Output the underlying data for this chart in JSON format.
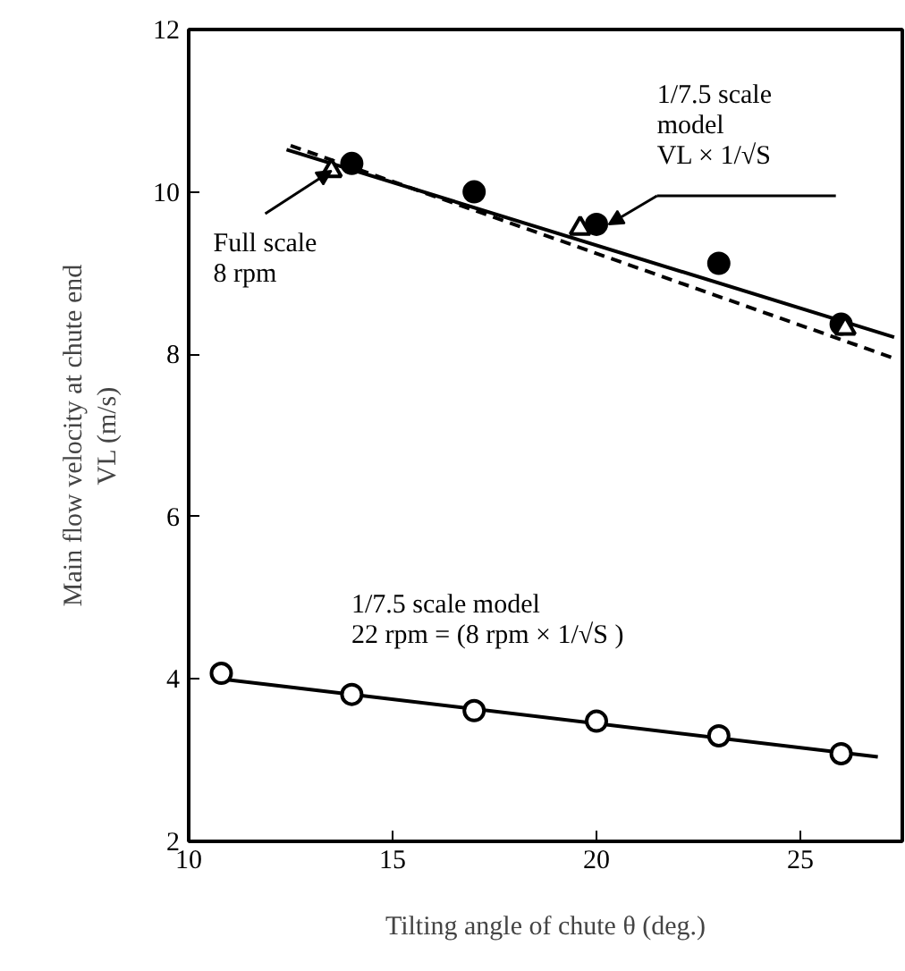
{
  "chart_data": {
    "type": "scatter",
    "xlabel": "Tilting angle of chute θ (deg.)",
    "ylabel": "Main flow velocity at chute end\nVL (m/s)",
    "xlim": [
      10,
      27.5
    ],
    "ylim": [
      2,
      12
    ],
    "xticks": [
      10,
      15,
      20,
      25
    ],
    "yticks": [
      2,
      4,
      6,
      8,
      10,
      12
    ],
    "grid": false,
    "series": [
      {
        "marker": "triangle",
        "color": "#000000",
        "colors": [
          "#ffffff",
          "#ffffff",
          "#ffffff"
        ],
        "x": [
          13.5,
          19.6,
          26.1
        ],
        "values": [
          10.26,
          9.55,
          8.32
        ]
      },
      {
        "marker": "circle",
        "color": "#000000",
        "x": [
          14,
          17,
          20,
          23,
          26
        ],
        "values": [
          10.35,
          10.0,
          9.6,
          9.12,
          8.37
        ]
      },
      {
        "type": "line",
        "line_style": "solid",
        "color": "#000000",
        "x": [
          12.4,
          27.3
        ],
        "values": [
          10.52,
          8.21
        ]
      },
      {
        "type": "line",
        "line_style": "dashed",
        "color": "#000000",
        "x": [
          12.5,
          27.3
        ],
        "values": [
          10.57,
          7.95
        ]
      },
      {
        "marker": "circle",
        "color": "#000000",
        "colors": [
          "#ffffff",
          "#ffffff",
          "#ffffff",
          "#ffffff",
          "#ffffff",
          "#ffffff"
        ],
        "x": [
          10.8,
          14,
          17,
          20,
          23,
          26
        ],
        "values": [
          4.07,
          3.81,
          3.61,
          3.48,
          3.3,
          3.08
        ]
      },
      {
        "type": "line",
        "line_style": "solid",
        "color": "#000000",
        "x": [
          10.8,
          26.9
        ],
        "values": [
          4.0,
          3.04
        ]
      }
    ],
    "annotations": [
      {
        "text": "Full scale\n8 rpm",
        "x": 13.5,
        "y": 10.26
      },
      {
        "text": "1/7.5 scale\nmodel\nVL × 1/√S",
        "x": 20.3,
        "y": 9.6
      },
      {
        "text": "1/7.5 scale model\n22 rpm = (8 rpm × 1/√S )",
        "x": 20,
        "y": 3.48
      }
    ]
  }
}
